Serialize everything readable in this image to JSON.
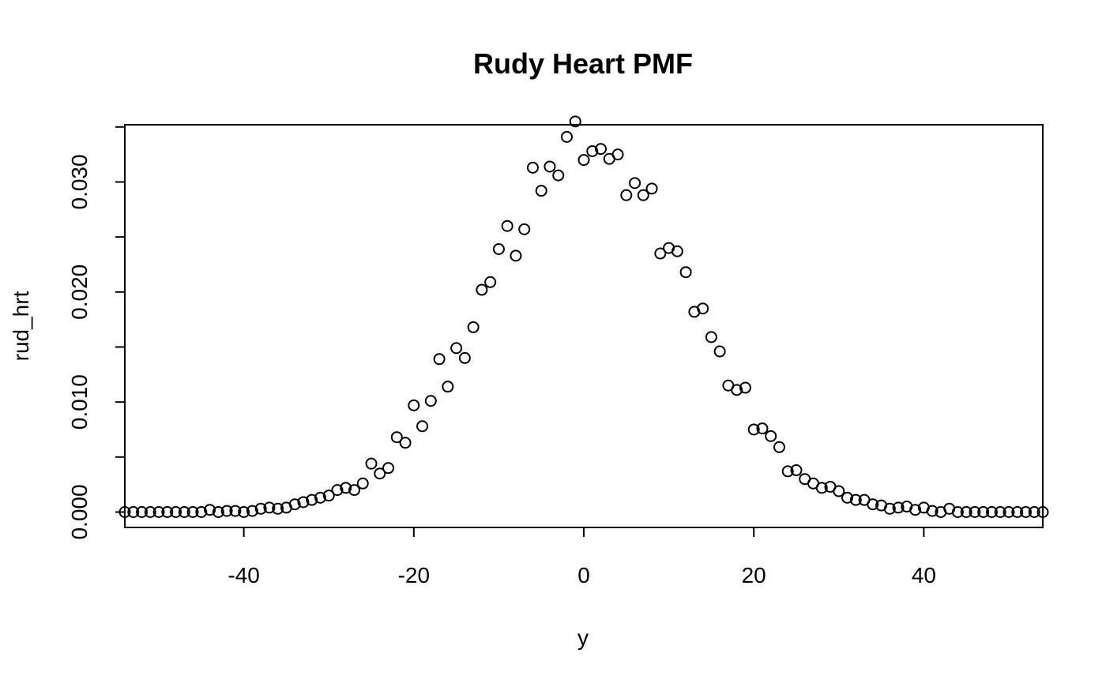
{
  "chart_data": {
    "type": "scatter",
    "title": "Rudy Heart PMF",
    "xlabel": "y",
    "ylabel": "rud_hrt",
    "xlim": [
      -54,
      54
    ],
    "ylim": [
      -0.0014,
      0.0352
    ],
    "xticks": [
      -40,
      -20,
      0,
      20,
      40
    ],
    "xtick_labels": [
      "-40",
      "-20",
      "0",
      "20",
      "40"
    ],
    "yticks": [
      0.0,
      0.005,
      0.01,
      0.015,
      0.02,
      0.025,
      0.03,
      0.035
    ],
    "ytick_labels": [
      "0.000",
      "",
      "0.010",
      "",
      "0.020",
      "",
      "0.030",
      ""
    ],
    "grid": false,
    "series": [
      {
        "marker": "open-circle",
        "color": "#000000",
        "x": [
          -54,
          -53,
          -52,
          -51,
          -50,
          -49,
          -48,
          -47,
          -46,
          -45,
          -44,
          -43,
          -42,
          -41,
          -40,
          -39,
          -38,
          -37,
          -36,
          -35,
          -34,
          -33,
          -32,
          -31,
          -30,
          -29,
          -28,
          -27,
          -26,
          -25,
          -24,
          -23,
          -22,
          -21,
          -20,
          -19,
          -18,
          -17,
          -16,
          -15,
          -14,
          -13,
          -12,
          -11,
          -10,
          -9,
          -8,
          -7,
          -6,
          -5,
          -4,
          -3,
          -2,
          -1,
          0,
          1,
          2,
          3,
          4,
          5,
          6,
          7,
          8,
          9,
          10,
          11,
          12,
          13,
          14,
          15,
          16,
          17,
          18,
          19,
          20,
          21,
          22,
          23,
          24,
          25,
          26,
          27,
          28,
          29,
          30,
          31,
          32,
          33,
          34,
          35,
          36,
          37,
          38,
          39,
          40,
          41,
          42,
          43,
          44,
          45,
          46,
          47,
          48,
          49,
          50,
          51,
          52,
          53,
          54
        ],
        "y": [
          0.0,
          0.0,
          0.0,
          0.0,
          0.0,
          0.0,
          0.0,
          0.0,
          0.0,
          0.0,
          0.0002,
          0.0,
          0.0001,
          0.0001,
          0.0,
          0.0001,
          0.0003,
          0.0004,
          0.0003,
          0.0004,
          0.0007,
          0.0009,
          0.0011,
          0.0013,
          0.0015,
          0.002,
          0.0022,
          0.002,
          0.0026,
          0.0044,
          0.0035,
          0.004,
          0.0068,
          0.0063,
          0.0097,
          0.0078,
          0.0101,
          0.0139,
          0.0114,
          0.0149,
          0.014,
          0.0168,
          0.0202,
          0.0209,
          0.0239,
          0.026,
          0.0233,
          0.0257,
          0.0313,
          0.0292,
          0.0314,
          0.0306,
          0.0341,
          0.0355,
          0.032,
          0.0328,
          0.033,
          0.0321,
          0.0325,
          0.0288,
          0.0299,
          0.0288,
          0.0294,
          0.0235,
          0.024,
          0.0237,
          0.0218,
          0.0182,
          0.0185,
          0.0159,
          0.0146,
          0.0115,
          0.0111,
          0.0113,
          0.0075,
          0.0076,
          0.0069,
          0.0059,
          0.0037,
          0.0038,
          0.003,
          0.0026,
          0.0022,
          0.0023,
          0.0019,
          0.0013,
          0.0011,
          0.0011,
          0.0007,
          0.0006,
          0.0003,
          0.0004,
          0.0005,
          0.0002,
          0.0004,
          0.0001,
          0.0,
          0.0003,
          0.0,
          0.0,
          0.0,
          0.0,
          0.0,
          0.0,
          0.0,
          0.0,
          0.0,
          0.0,
          0.0
        ]
      }
    ]
  }
}
